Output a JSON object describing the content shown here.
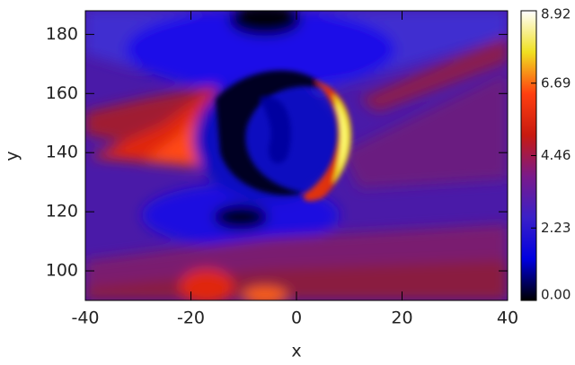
{
  "chart_data": {
    "type": "heatmap",
    "xlabel": "x",
    "ylabel": "y",
    "xlim": [
      -40,
      40
    ],
    "xticks": [
      -40,
      -20,
      0,
      20,
      40
    ],
    "ylim": [
      90,
      188
    ],
    "yticks": [
      100,
      120,
      140,
      160,
      180
    ],
    "colorbar_lim": [
      0,
      8.92
    ],
    "colorbar_ticks": [
      {
        "value": 0,
        "label": "0.00"
      },
      2.23,
      4.46,
      6.69,
      8.92
    ],
    "colormap": [
      "#000000",
      "#0000e0",
      "#3a20c8",
      "#7a1a8a",
      "#c81a10",
      "#ff4010",
      "#f0e020",
      "#ffffff"
    ]
  }
}
